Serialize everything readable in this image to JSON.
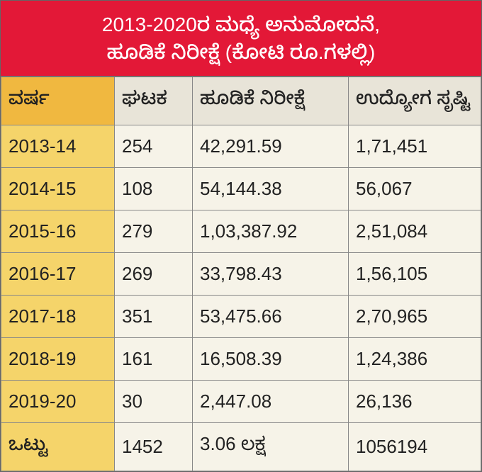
{
  "table": {
    "title_line1": "2013-2020ರ ಮಧ್ಯೆ ಅನುಮೋದನೆ,",
    "title_line2": "ಹೂಡಿಕೆ ನಿರೀಕ್ಷೆ (ಕೋಟಿ ರೂ.ಗಳಲ್ಲಿ)",
    "columns": {
      "year": "ವರ್ಷ",
      "units": "ಘಟಕ",
      "investment": "ಹೂಡಿಕೆ ನಿರೀಕ್ಷೆ",
      "employment": "ಉದ್ಯೋಗ ಸೃಷ್ಟಿ"
    },
    "rows": [
      {
        "year": "2013-14",
        "units": "254",
        "investment": "42,291.59",
        "employment": "1,71,451"
      },
      {
        "year": "2014-15",
        "units": "108",
        "investment": "54,144.38",
        "employment": "56,067"
      },
      {
        "year": "2015-16",
        "units": "279",
        "investment": "1,03,387.92",
        "employment": "2,51,084"
      },
      {
        "year": "2016-17",
        "units": "269",
        "investment": "33,798.43",
        "employment": "1,56,105"
      },
      {
        "year": "2017-18",
        "units": "351",
        "investment": "53,475.66",
        "employment": "2,70,965"
      },
      {
        "year": "2018-19",
        "units": "161",
        "investment": "16,508.39",
        "employment": "1,24,386"
      },
      {
        "year": "2019-20",
        "units": "30",
        "investment": "2,447.08",
        "employment": "26,136"
      }
    ],
    "total": {
      "label": "ಒಟ್ಟು",
      "units": "1452",
      "investment": "3.06 ಲಕ್ಷ",
      "employment": "1056194"
    },
    "colors": {
      "header_bg": "#e31837",
      "header_text": "#ffffff",
      "year_header_bg": "#f0b840",
      "col_header_bg": "#e8e4d8",
      "year_cell_bg": "#f5d46a",
      "data_cell_bg": "#f6f3e8",
      "border": "#888888",
      "text": "#222222"
    },
    "fontsizes": {
      "title": 28,
      "cell": 26
    }
  }
}
